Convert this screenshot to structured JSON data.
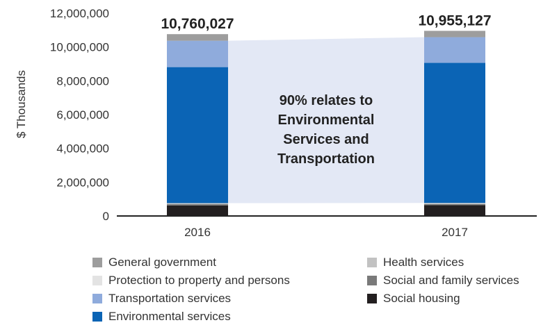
{
  "chart_data": {
    "type": "bar",
    "stacked": true,
    "ylabel": "$ Thousands",
    "ylim": [
      0,
      12000000
    ],
    "yticks": [
      0,
      2000000,
      4000000,
      6000000,
      8000000,
      10000000,
      12000000
    ],
    "ytick_labels": [
      "0",
      "2,000,000",
      "4,000,000",
      "6,000,000",
      "8,000,000",
      "10,000,000",
      "12,000,000"
    ],
    "grid": false,
    "categories": [
      "2016",
      "2017"
    ],
    "totals": [
      "10,760,027",
      "10,955,127"
    ],
    "total_values": [
      10760027,
      10955127
    ],
    "annotation_lines": [
      "90% relates to",
      "Environmental",
      "Services and",
      "Transportation"
    ],
    "series": [
      {
        "name": "Social housing",
        "color": "#231f20",
        "values": [
          620000,
          640000
        ]
      },
      {
        "name": "Social and family services",
        "color": "#7a7a7a",
        "values": [
          80000,
          70000
        ]
      },
      {
        "name": "Protection to property and persons",
        "color": "#e3e3e3",
        "values": [
          20000,
          20000
        ]
      },
      {
        "name": "Health services",
        "color": "#c2c2c2",
        "values": [
          40000,
          40000
        ]
      },
      {
        "name": "Environmental services",
        "color": "#0b64b5",
        "values": [
          8050000,
          8290000
        ]
      },
      {
        "name": "Transportation services",
        "color": "#8fabdc",
        "values": [
          1560000,
          1520000
        ]
      },
      {
        "name": "General government",
        "color": "#9d9d9d",
        "values": [
          390000,
          375000
        ]
      }
    ],
    "legend": {
      "placement": "bottom",
      "items": [
        {
          "label": "General government",
          "color": "#9d9d9d"
        },
        {
          "label": "Health services",
          "color": "#c2c2c2"
        },
        {
          "label": "Protection to property and persons",
          "color": "#e3e3e3"
        },
        {
          "label": "Social and family services",
          "color": "#7a7a7a"
        },
        {
          "label": "Transportation services",
          "color": "#8fabdc"
        },
        {
          "label": "Social housing",
          "color": "#231f20"
        },
        {
          "label": "Environmental services",
          "color": "#0b64b5"
        }
      ]
    }
  }
}
